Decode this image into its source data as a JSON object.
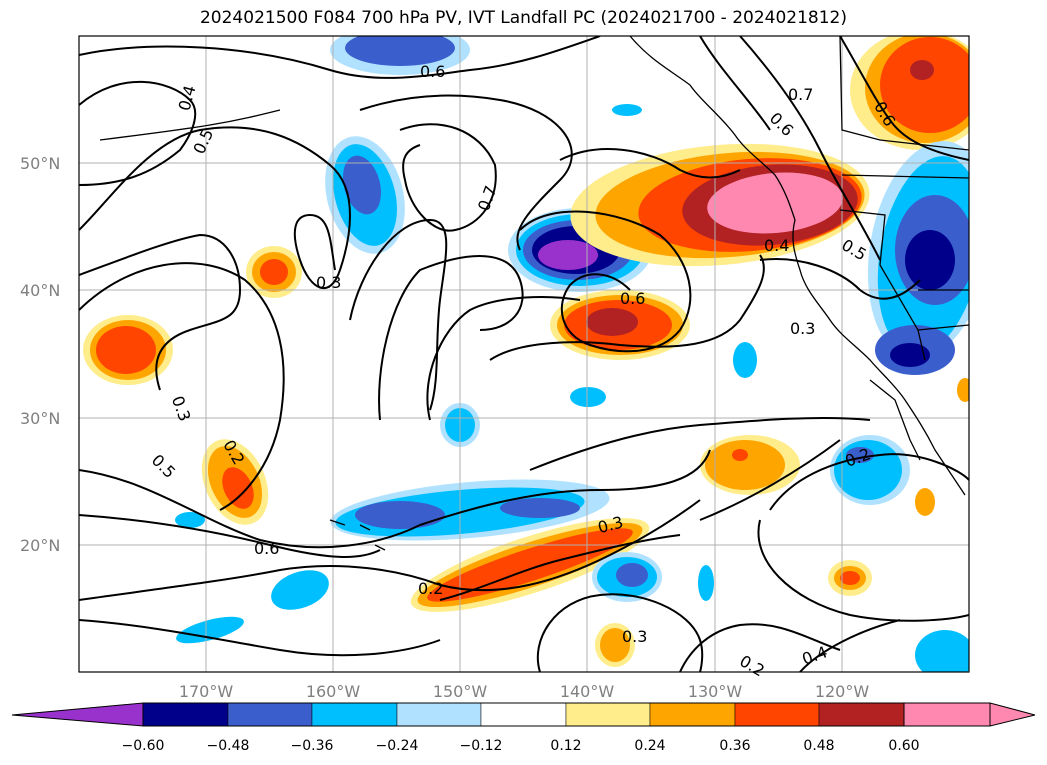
{
  "title": "2024021500 F084 700 hPa PV, IVT Landfall PC (2024021700 - 2024021812)",
  "map": {
    "lat_ticks": [
      {
        "value": 50,
        "label": "50°N"
      },
      {
        "value": 40,
        "label": "40°N"
      },
      {
        "value": 30,
        "label": "30°N"
      },
      {
        "value": 20,
        "label": "20°N"
      }
    ],
    "lon_ticks": [
      {
        "value": -170,
        "label": "170°W"
      },
      {
        "value": -160,
        "label": "160°W"
      },
      {
        "value": -150,
        "label": "150°W"
      },
      {
        "value": -140,
        "label": "140°W"
      },
      {
        "value": -130,
        "label": "130°W"
      },
      {
        "value": -120,
        "label": "120°W"
      }
    ],
    "extent": {
      "lon_min": -180,
      "lon_max": -110,
      "lat_min": 10,
      "lat_max": 60
    },
    "contour_labels": [
      "0.6",
      "0.4",
      "0.5",
      "0.7",
      "0.6",
      "0.6",
      "0.7",
      "0.3",
      "0.6",
      "0.4",
      "0.5",
      "0.3",
      "0.3",
      "0.2",
      "0.5",
      "0.6",
      "0.3",
      "0.2",
      "0.2",
      "0.3",
      "0.2",
      "0.4"
    ]
  },
  "colorbar": {
    "ticks": [
      "−0.60",
      "−0.48",
      "−0.36",
      "−0.24",
      "−0.12",
      "0.12",
      "0.24",
      "0.36",
      "0.48",
      "0.60"
    ],
    "colors": [
      "#9932cc",
      "#00008b",
      "#3a5fcd",
      "#00bfff",
      "#b0e2ff",
      "#ffffff",
      "#ffec8b",
      "#ffa500",
      "#ff4500",
      "#b22222",
      "#ff88b0",
      "#ff88b0"
    ]
  },
  "colors": {
    "grid": "#b0b0b0",
    "contour": "#000000",
    "coast": "#000000"
  }
}
